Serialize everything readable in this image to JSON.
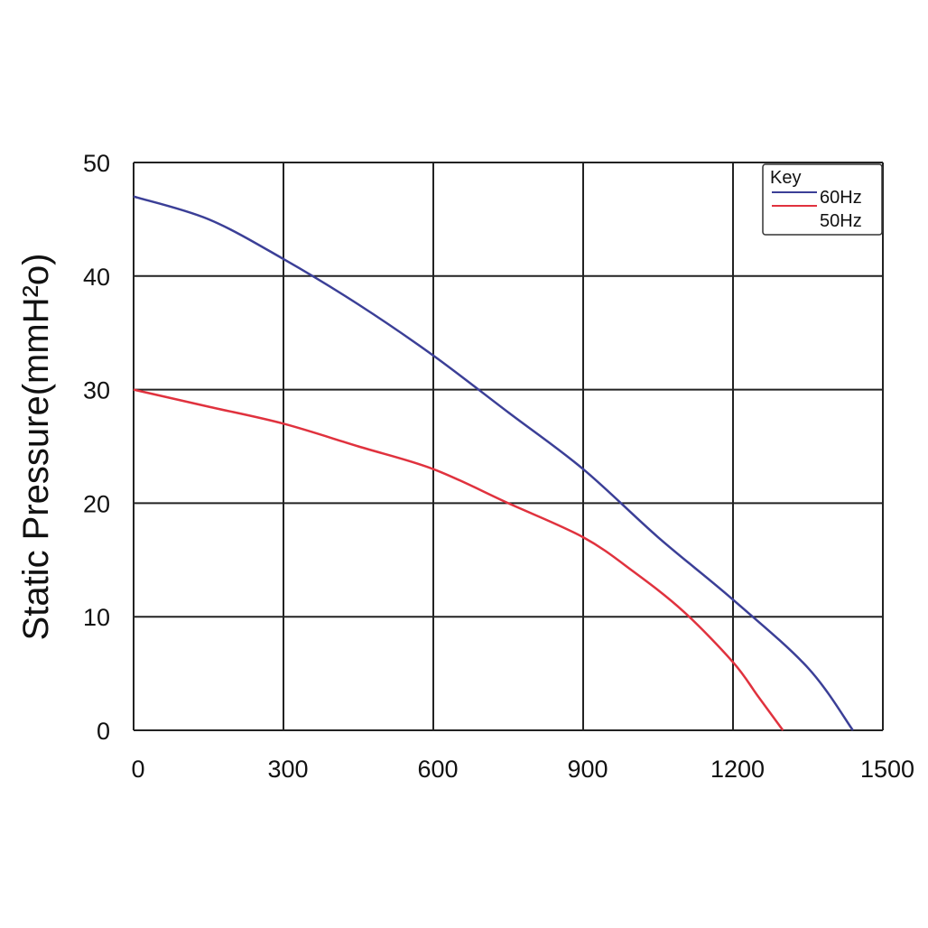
{
  "chart_data": {
    "type": "line",
    "title": "",
    "xlabel": "",
    "ylabel": "Static Pressure(mmH²o)",
    "xlim": [
      0,
      1500
    ],
    "ylim": [
      0,
      50
    ],
    "x_ticks": [
      "0",
      "300",
      "600",
      "900",
      "1200",
      "1500"
    ],
    "y_ticks": [
      "0",
      "10",
      "20",
      "30",
      "40",
      "50"
    ],
    "grid": true,
    "legend": {
      "title": "Key",
      "position": "top-right"
    },
    "series": [
      {
        "name": "60Hz",
        "color": "#3b3f97",
        "points": [
          [
            0,
            47
          ],
          [
            150,
            45
          ],
          [
            300,
            41.5
          ],
          [
            450,
            37.5
          ],
          [
            600,
            33
          ],
          [
            750,
            28
          ],
          [
            900,
            23
          ],
          [
            1050,
            17
          ],
          [
            1200,
            11.5
          ],
          [
            1350,
            5.5
          ],
          [
            1440,
            0
          ]
        ]
      },
      {
        "name": "50Hz",
        "color": "#e0323e",
        "points": [
          [
            0,
            30
          ],
          [
            150,
            28.5
          ],
          [
            300,
            27
          ],
          [
            450,
            25
          ],
          [
            600,
            23
          ],
          [
            750,
            20
          ],
          [
            900,
            17
          ],
          [
            1000,
            14
          ],
          [
            1100,
            10.5
          ],
          [
            1200,
            6
          ],
          [
            1250,
            3
          ],
          [
            1300,
            0
          ]
        ]
      }
    ]
  }
}
